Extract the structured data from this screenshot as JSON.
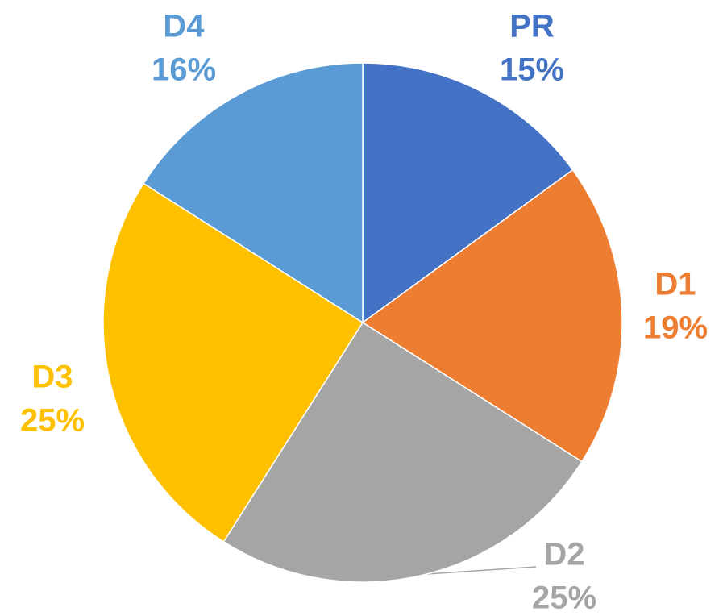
{
  "chart_data": {
    "type": "pie",
    "categories": [
      "PR",
      "D1",
      "D2",
      "D3",
      "D4"
    ],
    "values": [
      15,
      19,
      25,
      25,
      16
    ],
    "value_labels": [
      "15%",
      "19%",
      "25%",
      "25%",
      "16%"
    ],
    "colors": [
      "#4472c4",
      "#ed7d31",
      "#a5a5a5",
      "#ffc000",
      "#5b9bd5"
    ]
  }
}
